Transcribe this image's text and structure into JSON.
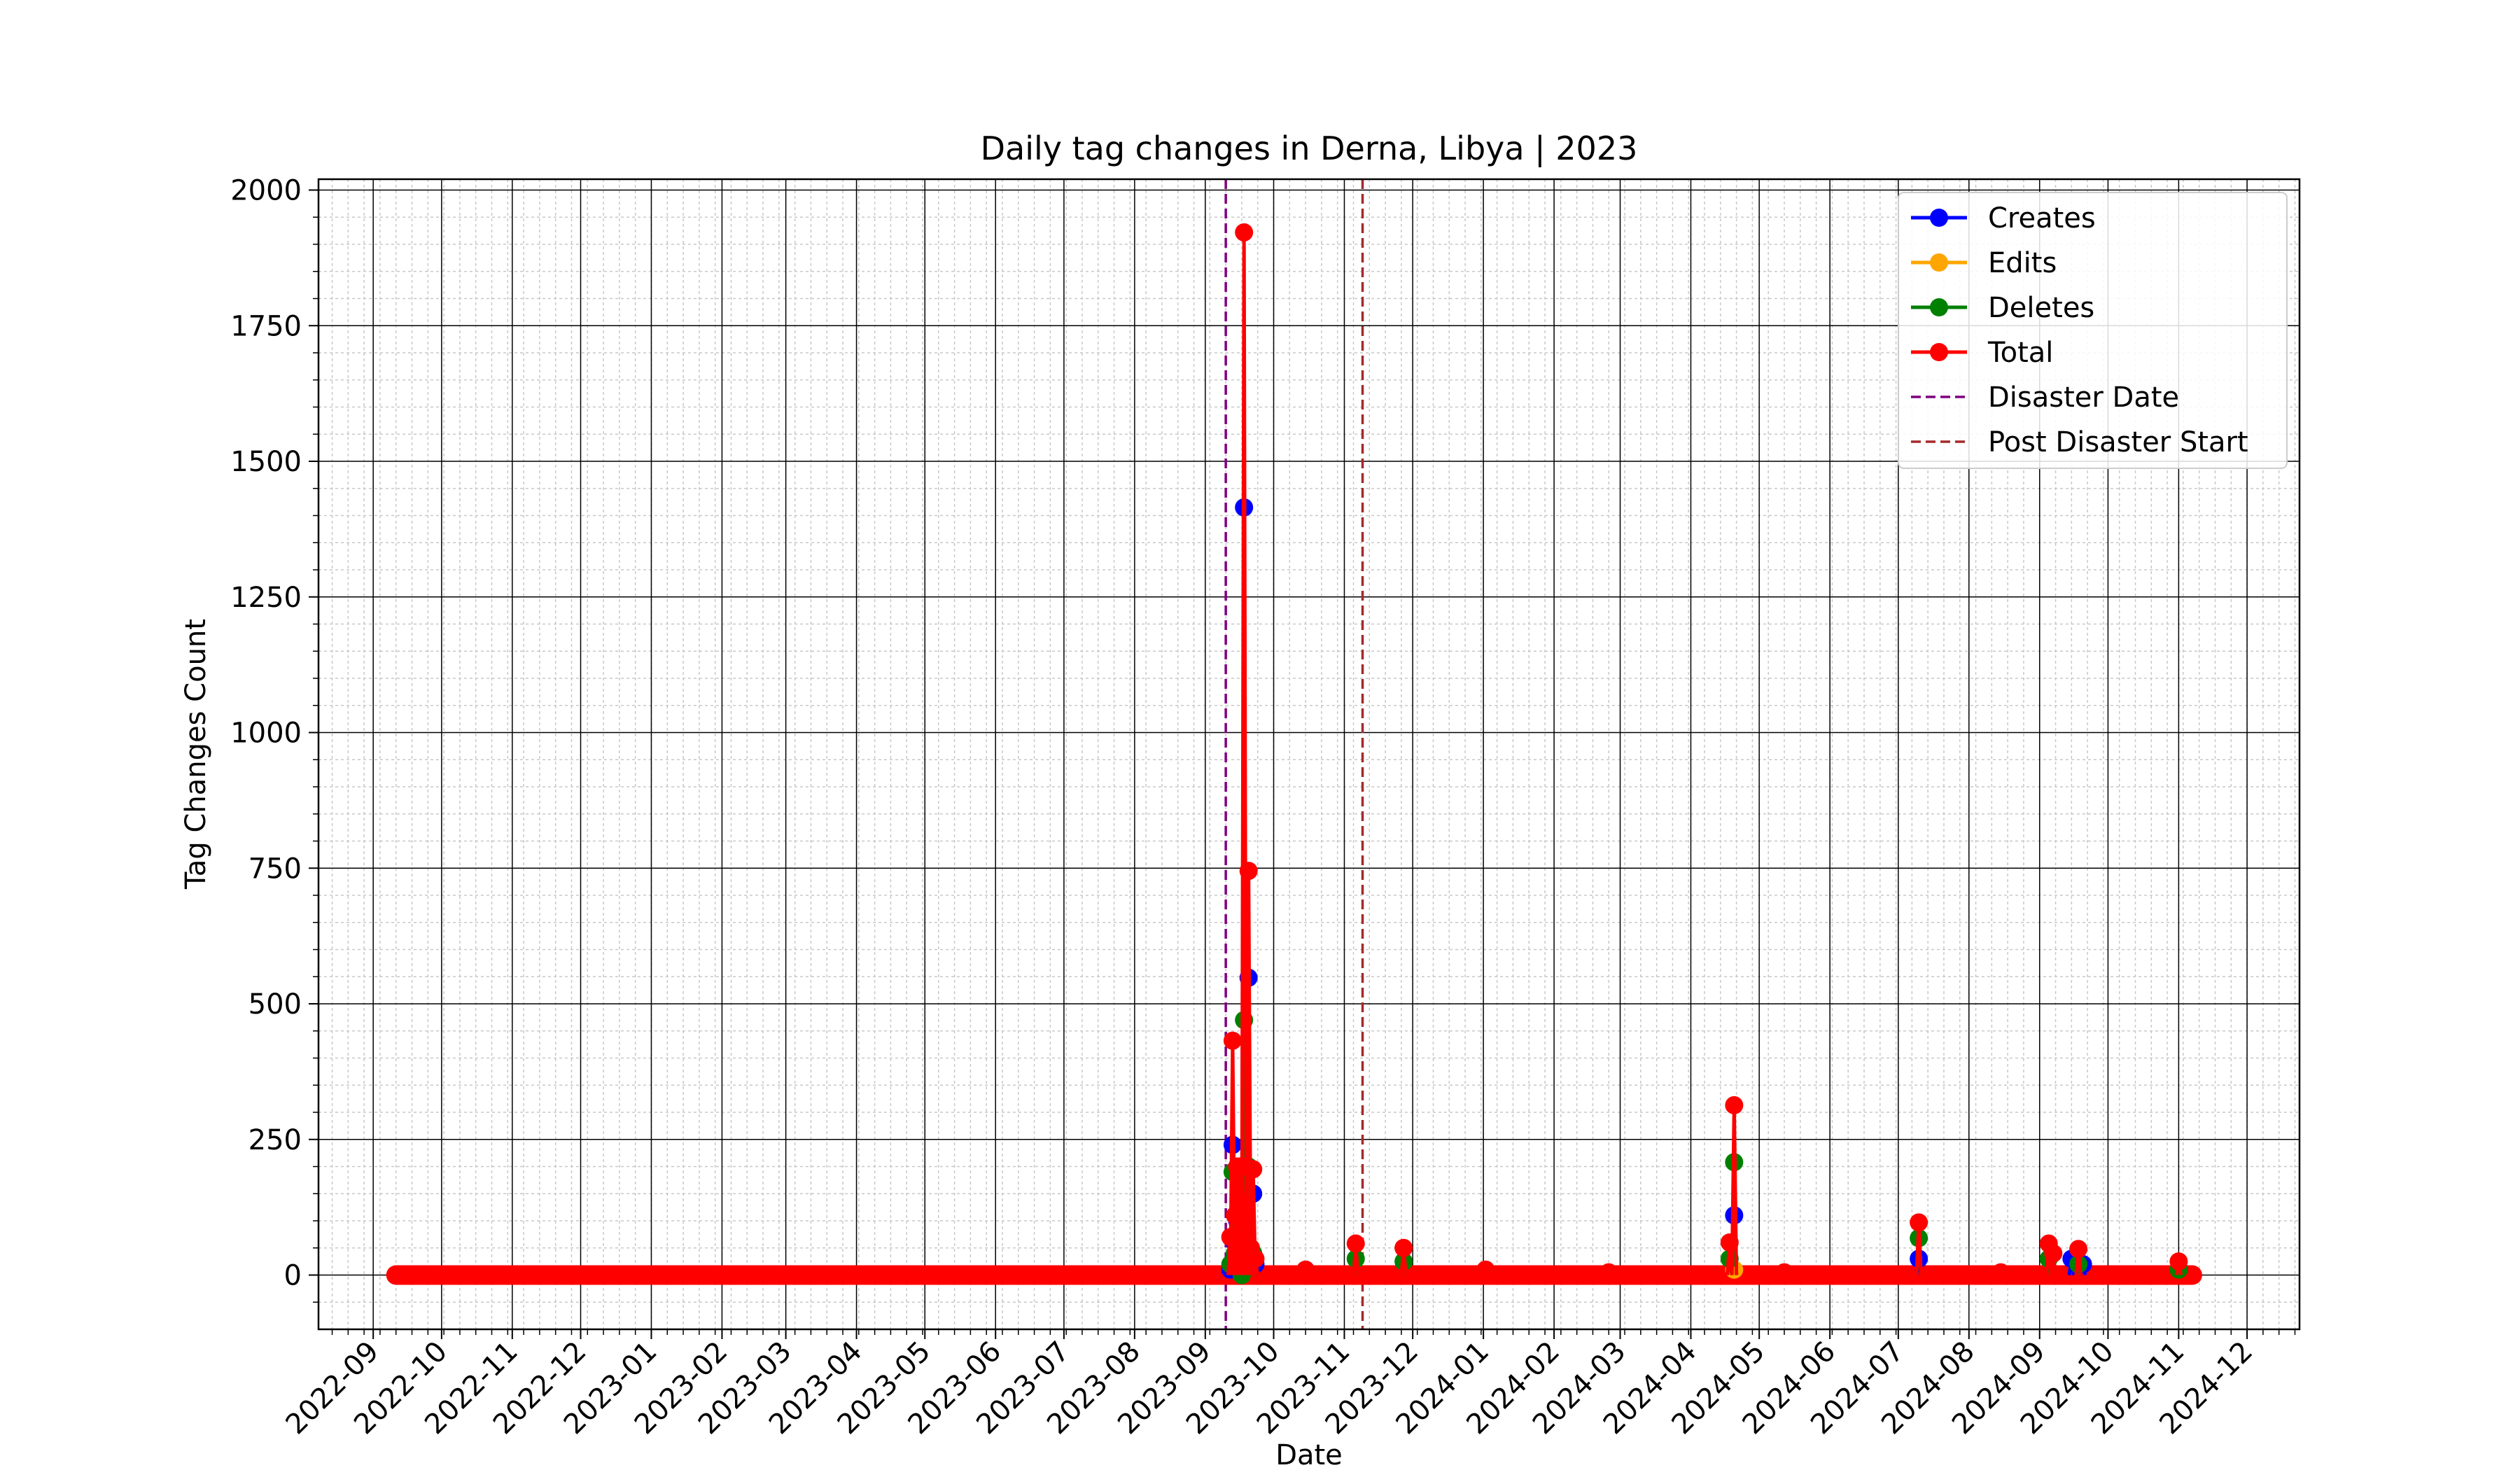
{
  "chart_data": {
    "type": "line",
    "title": "Daily tag changes in Derna, Libya | 2023",
    "xlabel": "Date",
    "ylabel": "Tag Changes Count",
    "x_range": [
      "2022-08-08",
      "2024-12-24"
    ],
    "ylim": [
      -100,
      2020
    ],
    "x_ticks": [
      "2022-09",
      "2022-10",
      "2022-11",
      "2022-12",
      "2023-01",
      "2023-02",
      "2023-03",
      "2023-04",
      "2023-05",
      "2023-06",
      "2023-07",
      "2023-08",
      "2023-09",
      "2023-10",
      "2023-11",
      "2023-12",
      "2024-01",
      "2024-02",
      "2024-03",
      "2024-04",
      "2024-05",
      "2024-06",
      "2024-07",
      "2024-08",
      "2024-09",
      "2024-10",
      "2024-11",
      "2024-12"
    ],
    "y_ticks": [
      "0",
      "250",
      "500",
      "750",
      "1000",
      "1250",
      "1500",
      "1750",
      "2000"
    ],
    "grid": true,
    "legend_position": "top-right",
    "baseline_start": "2022-09-11",
    "baseline_end": "2024-11-07",
    "series": [
      {
        "name": "Creates",
        "color": "#0000ff",
        "points": [
          [
            "2023-09-12",
            10
          ],
          [
            "2023-09-13",
            240
          ],
          [
            "2023-09-14",
            60
          ],
          [
            "2023-09-15",
            100
          ],
          [
            "2023-09-16",
            160
          ],
          [
            "2023-09-17",
            80
          ],
          [
            "2023-09-18",
            1415
          ],
          [
            "2023-09-19",
            60
          ],
          [
            "2023-09-20",
            548
          ],
          [
            "2023-09-21",
            40
          ],
          [
            "2023-09-22",
            150
          ],
          [
            "2023-09-23",
            20
          ],
          [
            "2024-04-20",
            110
          ],
          [
            "2024-07-10",
            30
          ],
          [
            "2024-09-15",
            30
          ],
          [
            "2024-09-20",
            20
          ]
        ]
      },
      {
        "name": "Edits",
        "color": "#ffa500",
        "points": [
          [
            "2023-09-14",
            20
          ],
          [
            "2023-09-18",
            30
          ],
          [
            "2023-09-20",
            20
          ],
          [
            "2024-04-20",
            10
          ]
        ]
      },
      {
        "name": "Deletes",
        "color": "#008000",
        "points": [
          [
            "2023-09-12",
            20
          ],
          [
            "2023-09-13",
            190
          ],
          [
            "2023-09-14",
            40
          ],
          [
            "2023-09-15",
            60
          ],
          [
            "2023-09-16",
            30
          ],
          [
            "2023-09-17",
            0
          ],
          [
            "2023-09-18",
            470
          ],
          [
            "2023-09-19",
            100
          ],
          [
            "2023-09-20",
            200
          ],
          [
            "2023-09-21",
            40
          ],
          [
            "2023-09-22",
            40
          ],
          [
            "2023-11-06",
            30
          ],
          [
            "2023-11-27",
            25
          ],
          [
            "2024-04-18",
            30
          ],
          [
            "2024-04-20",
            208
          ],
          [
            "2024-07-10",
            68
          ],
          [
            "2024-09-05",
            30
          ],
          [
            "2024-09-18",
            20
          ],
          [
            "2024-11-01",
            10
          ]
        ]
      },
      {
        "name": "Total",
        "color": "#ff0000",
        "points": [
          [
            "2023-09-12",
            70
          ],
          [
            "2023-09-13",
            432
          ],
          [
            "2023-09-14",
            110
          ],
          [
            "2023-09-15",
            200
          ],
          [
            "2023-09-16",
            200
          ],
          [
            "2023-09-17",
            80
          ],
          [
            "2023-09-18",
            1922
          ],
          [
            "2023-09-19",
            200
          ],
          [
            "2023-09-20",
            745
          ],
          [
            "2023-09-21",
            50
          ],
          [
            "2023-09-22",
            195
          ],
          [
            "2023-09-23",
            30
          ],
          [
            "2023-10-15",
            10
          ],
          [
            "2023-11-06",
            58
          ],
          [
            "2023-11-27",
            50
          ],
          [
            "2024-01-02",
            10
          ],
          [
            "2024-02-25",
            5
          ],
          [
            "2024-04-18",
            60
          ],
          [
            "2024-04-20",
            313
          ],
          [
            "2024-05-12",
            5
          ],
          [
            "2024-07-10",
            97
          ],
          [
            "2024-08-15",
            5
          ],
          [
            "2024-09-05",
            58
          ],
          [
            "2024-09-07",
            40
          ],
          [
            "2024-09-18",
            48
          ],
          [
            "2024-11-01",
            25
          ]
        ]
      }
    ],
    "vlines": [
      {
        "name": "Disaster Date",
        "x": "2023-09-10",
        "color": "#800080"
      },
      {
        "name": "Post Disaster Start",
        "x": "2023-11-09",
        "color": "#a52a2a"
      }
    ]
  }
}
